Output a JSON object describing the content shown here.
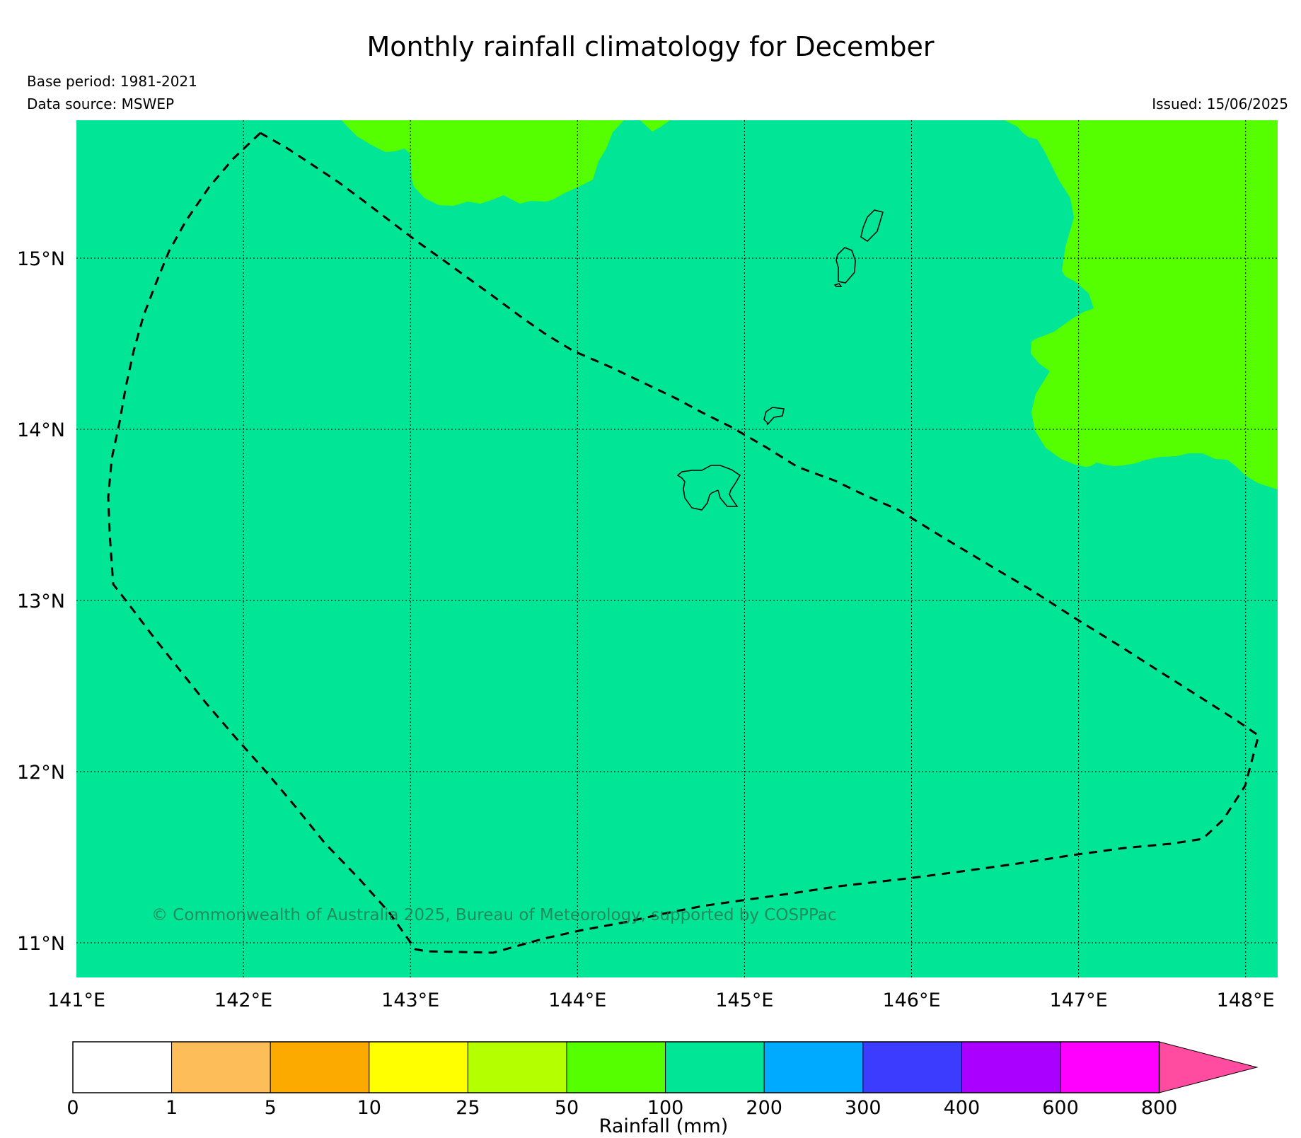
{
  "title": "Monthly rainfall climatology for December",
  "base_period": "Base period: 1981-2021",
  "data_source": "Data source: MSWEP",
  "issued": "Issued: 15/06/2025",
  "copyright": "© Commonwealth of Australia 2025, Bureau of Meteorology, supported by COSPPac",
  "colors": {
    "main_field": "#00e696",
    "wet_field": "#55ff00",
    "eez_line": "#000000"
  },
  "map": {
    "lon_labels": [
      "141°E",
      "142°E",
      "143°E",
      "144°E",
      "145°E",
      "146°E",
      "147°E",
      "148°E"
    ],
    "lat_labels": [
      "15°N",
      "14°N",
      "13°N",
      "12°N",
      "11°N"
    ]
  },
  "colorbar": {
    "title": "Rainfall (mm)",
    "ticks": [
      "0",
      "1",
      "5",
      "10",
      "25",
      "50",
      "100",
      "200",
      "300",
      "400",
      "600",
      "800"
    ],
    "colors": [
      "#ffffff",
      "#fdbe5a",
      "#fdaa00",
      "#ffff00",
      "#b4ff00",
      "#55ff00",
      "#00e696",
      "#00aaff",
      "#3c3cff",
      "#aa00ff",
      "#ff00ff",
      "#ff4ca0"
    ],
    "extend": "max"
  }
}
